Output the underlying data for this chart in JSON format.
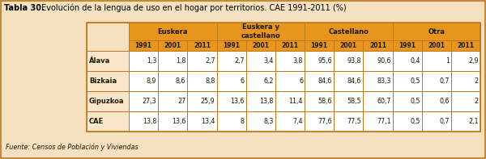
{
  "title_bold": "Tabla 30.",
  "title_rest": " Evolución de la lengua de uso en el hogar por territorios. CAE 1991-2011 (%)",
  "source": "Fuente: Censos de Población y Viviendas",
  "col_groups": [
    "Euskera",
    "Euskera y\ncastellano",
    "Castellano",
    "Otra"
  ],
  "years": [
    "1991",
    "2001",
    "2011"
  ],
  "rows": [
    "Álava",
    "Bizkaia",
    "Gipuzkoa",
    "CAE"
  ],
  "data_str": [
    [
      "1,3",
      "1,8",
      "2,7",
      "2,7",
      "3,4",
      "3,8",
      "95,6",
      "93,8",
      "90,6",
      "0,4",
      "1",
      "2,9"
    ],
    [
      "8,9",
      "8,6",
      "8,8",
      "6",
      "6,2",
      "6",
      "84,6",
      "84,6",
      "83,3",
      "0,5",
      "0,7",
      "2"
    ],
    [
      "27,3",
      "27",
      "25,9",
      "13,6",
      "13,8",
      "11,4",
      "58,6",
      "58,5",
      "60,7",
      "0,5",
      "0,6",
      "2"
    ],
    [
      "13,8",
      "13,6",
      "13,4",
      "8",
      "8,3",
      "7,4",
      "77,6",
      "77,5",
      "77,1",
      "0,5",
      "0,7",
      "2,1"
    ]
  ],
  "bg_color": "#F5C98A",
  "header_color": "#E8951E",
  "border_color": "#C07818",
  "outer_bg": "#F5E0C0",
  "white": "#FFFFFF",
  "row_bg": "#FAE5C8",
  "text_color": "#1A1A00",
  "title_color": "#000000"
}
